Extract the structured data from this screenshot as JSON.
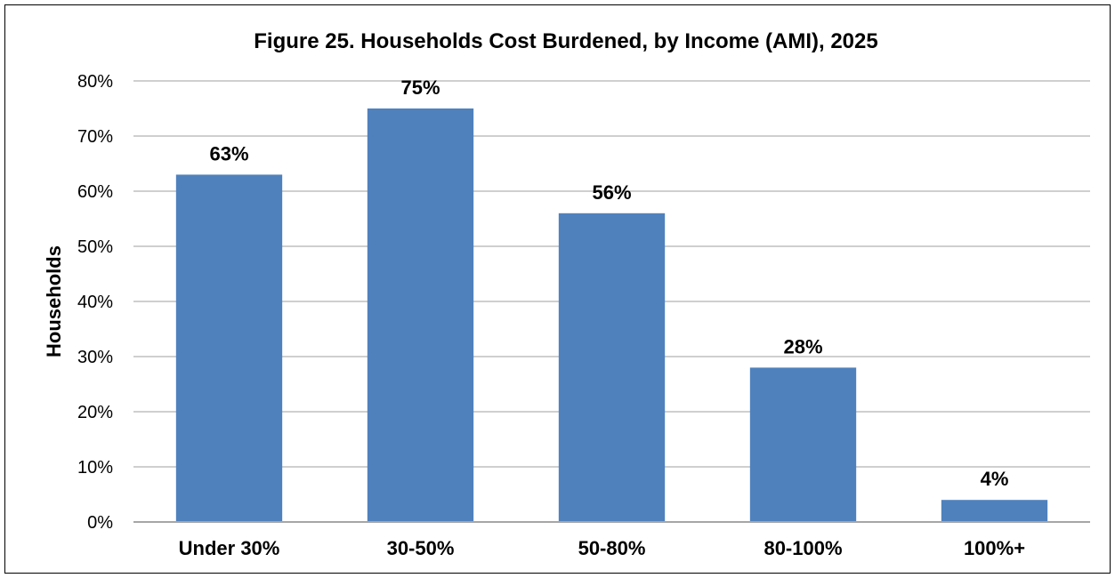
{
  "chart_data": {
    "type": "bar",
    "title": "Figure 25. Households Cost Burdened, by Income (AMI), 2025",
    "xlabel": "",
    "ylabel": "Households",
    "categories": [
      "Under 30%",
      "30-50%",
      "50-80%",
      "80-100%",
      "100%+"
    ],
    "values": [
      63,
      75,
      56,
      28,
      4
    ],
    "data_labels": [
      "63%",
      "75%",
      "56%",
      "28%",
      "4%"
    ],
    "ylim": [
      0,
      80
    ],
    "yticks": [
      0,
      10,
      20,
      30,
      40,
      50,
      60,
      70,
      80
    ],
    "ytick_labels": [
      "0%",
      "10%",
      "20%",
      "30%",
      "40%",
      "50%",
      "60%",
      "70%",
      "80%"
    ],
    "grid": true,
    "bar_color": "#4F81BD",
    "grid_color": "#BFBFBF"
  }
}
